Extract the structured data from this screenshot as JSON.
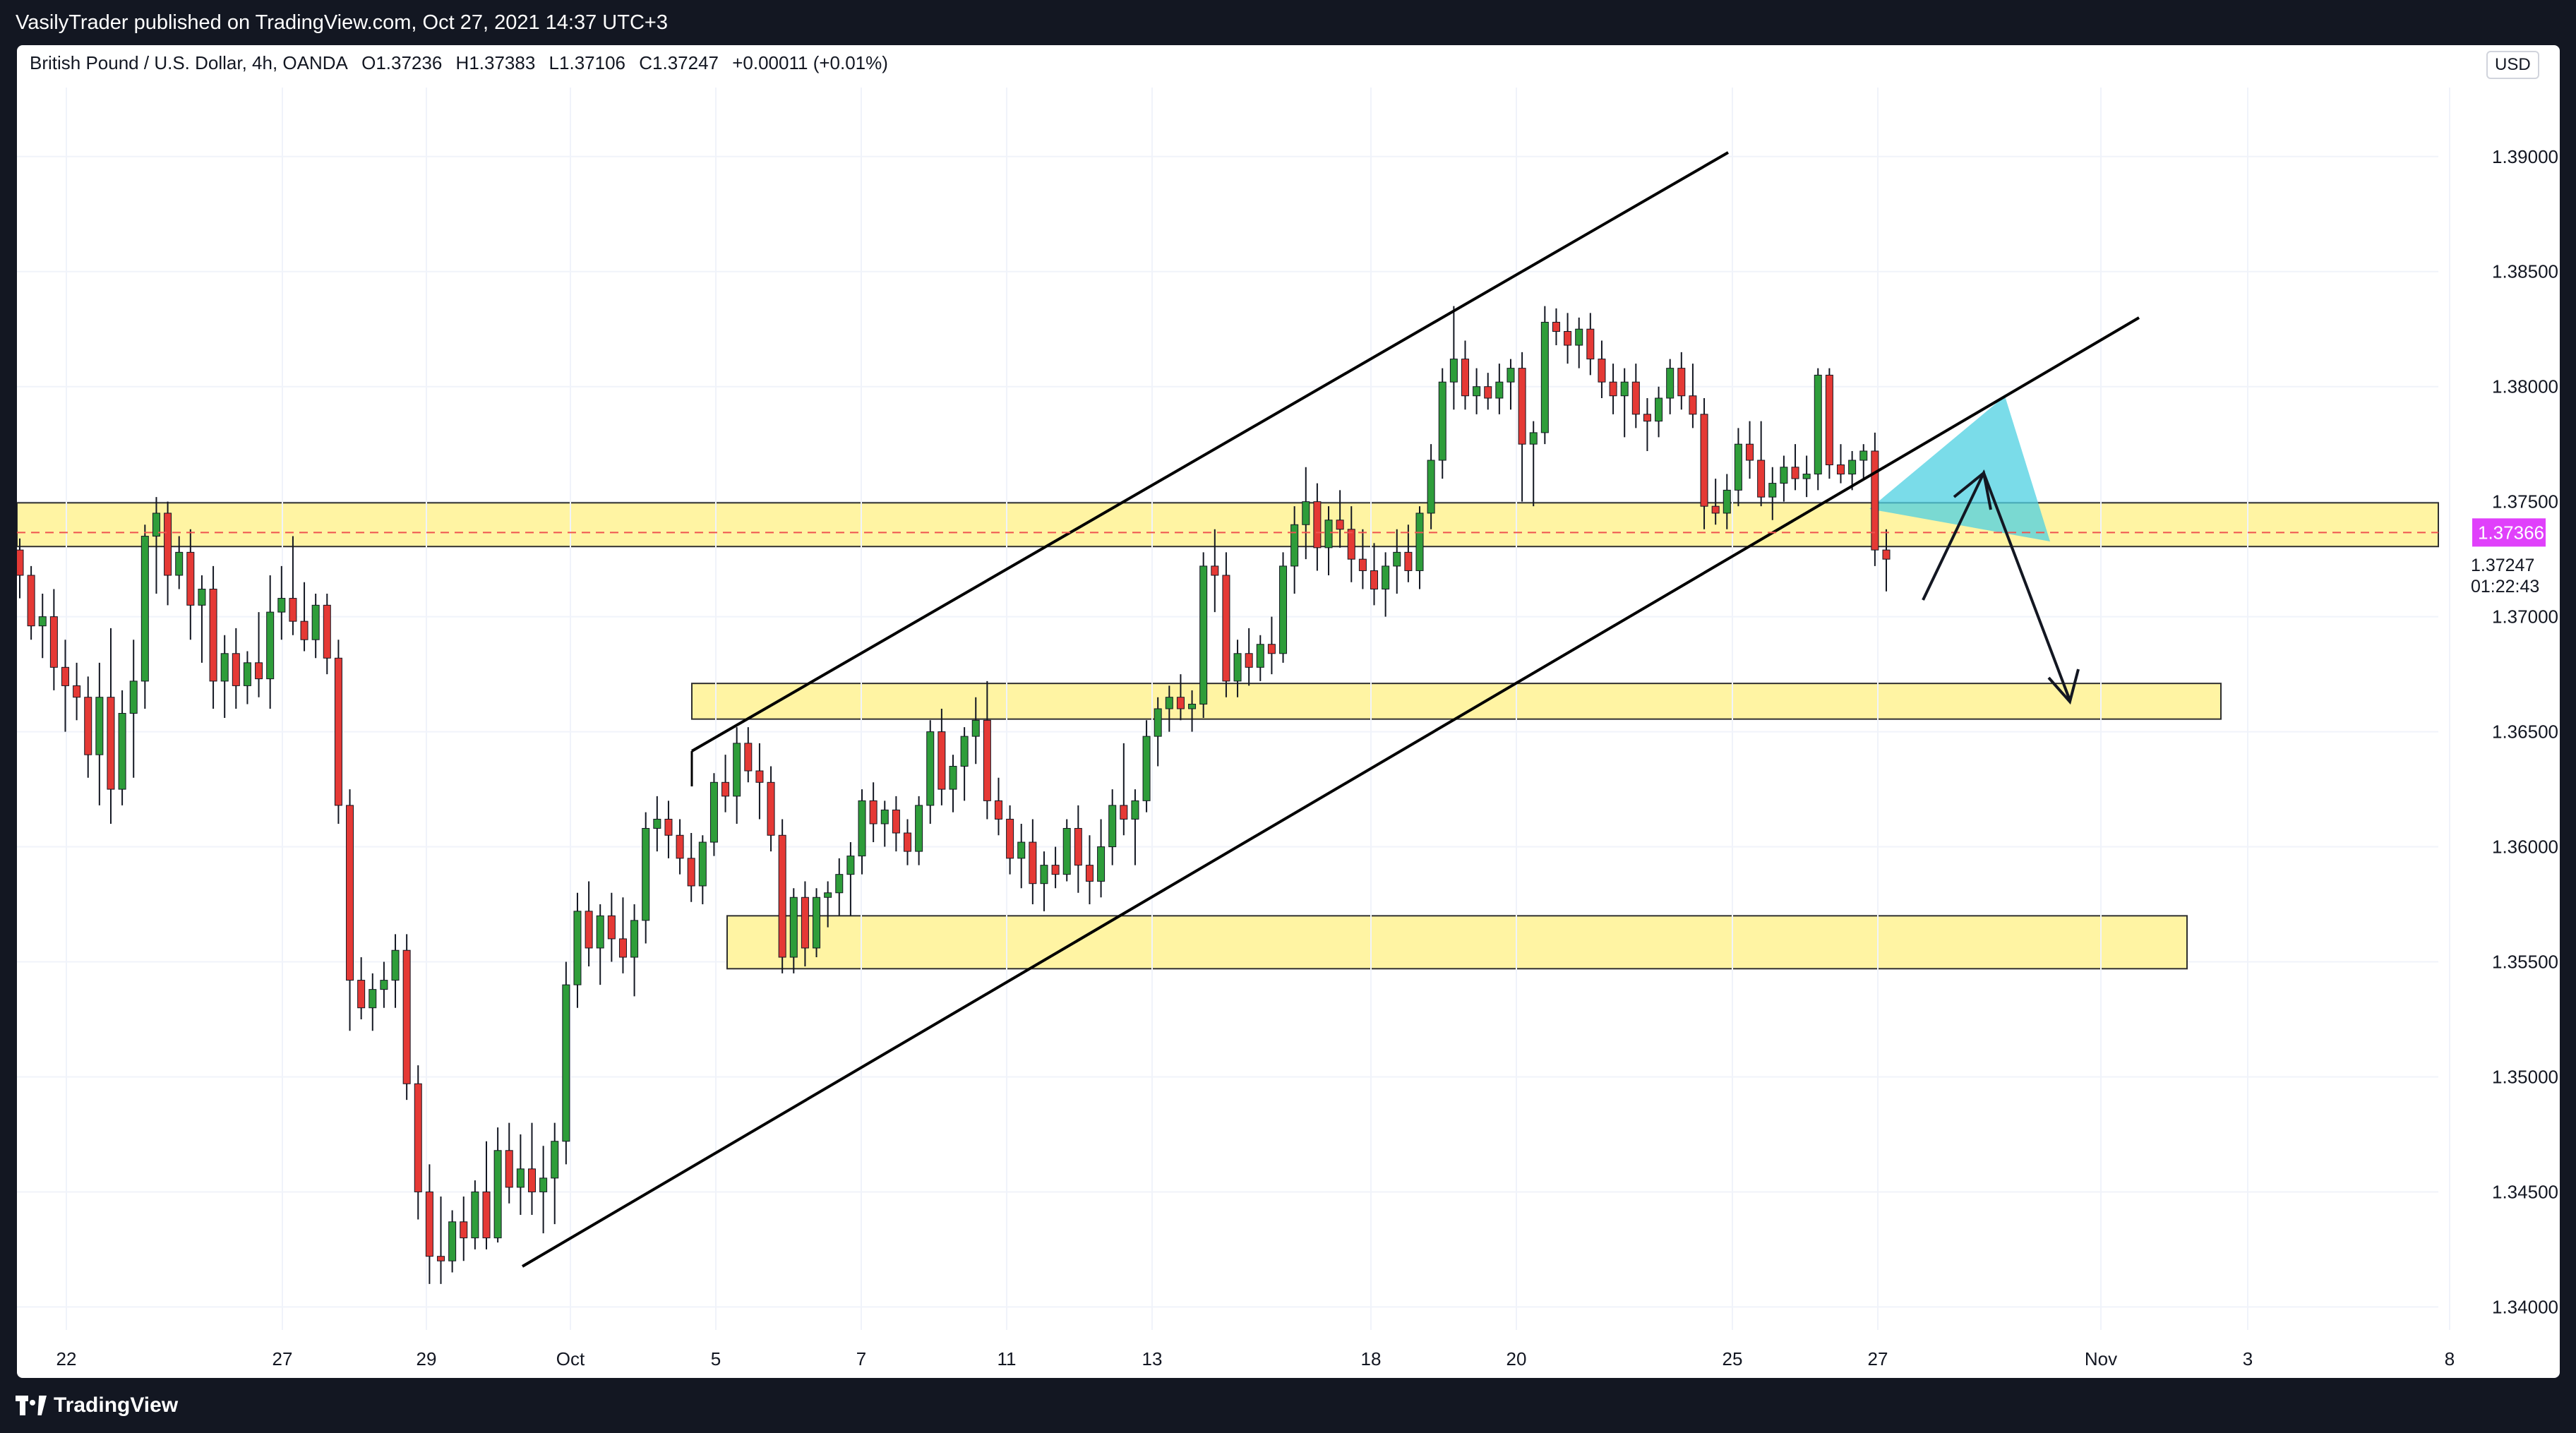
{
  "header": {
    "published_by": "VasilyTrader published on TradingView.com, Oct 27, 2021 14:37 UTC+3"
  },
  "footer": {
    "brand": "TradingView"
  },
  "chart_data": {
    "type": "candlestick",
    "symbol_info": {
      "name": "British Pound / U.S. Dollar, 4h, OANDA",
      "open": "O1.37236",
      "high": "H1.37383",
      "low": "L1.37106",
      "close": "C1.37247",
      "change": "+0.00011 (+0.01%)"
    },
    "currency": "USD",
    "y_ticks": [
      "1.39000",
      "1.38500",
      "1.38000",
      "1.37500",
      "1.37000",
      "1.36500",
      "1.36000",
      "1.35500",
      "1.35000",
      "1.34500",
      "1.34000"
    ],
    "x_ticks": [
      "22",
      "27",
      "29",
      "Oct",
      "5",
      "7",
      "11",
      "13",
      "18",
      "20",
      "25",
      "27",
      "Nov",
      "3",
      "8"
    ],
    "current_price": {
      "value": "1.37366",
      "color": "#e040fb"
    },
    "last_close": {
      "value": "1.37247",
      "countdown": "01:22:43"
    },
    "candles": [
      [
        1.3729,
        1.3734,
        1.3708,
        1.3718
      ],
      [
        1.3718,
        1.3722,
        1.369,
        1.3696
      ],
      [
        1.3696,
        1.371,
        1.3682,
        1.37
      ],
      [
        1.37,
        1.3712,
        1.3668,
        1.3678
      ],
      [
        1.3678,
        1.369,
        1.365,
        1.367
      ],
      [
        1.367,
        1.368,
        1.3655,
        1.3665
      ],
      [
        1.3665,
        1.3674,
        1.363,
        1.364
      ],
      [
        1.364,
        1.368,
        1.3618,
        1.3665
      ],
      [
        1.3665,
        1.3695,
        1.361,
        1.3625
      ],
      [
        1.3625,
        1.3668,
        1.3618,
        1.3658
      ],
      [
        1.3658,
        1.369,
        1.363,
        1.3672
      ],
      [
        1.3672,
        1.374,
        1.366,
        1.3735
      ],
      [
        1.3735,
        1.3752,
        1.371,
        1.3745
      ],
      [
        1.3745,
        1.375,
        1.3705,
        1.3718
      ],
      [
        1.3718,
        1.3735,
        1.3712,
        1.3728
      ],
      [
        1.3728,
        1.3738,
        1.369,
        1.3705
      ],
      [
        1.3705,
        1.3718,
        1.368,
        1.3712
      ],
      [
        1.3712,
        1.3722,
        1.366,
        1.3672
      ],
      [
        1.3672,
        1.3692,
        1.3656,
        1.3684
      ],
      [
        1.3684,
        1.3695,
        1.366,
        1.367
      ],
      [
        1.367,
        1.3685,
        1.3662,
        1.368
      ],
      [
        1.368,
        1.3702,
        1.3665,
        1.3673
      ],
      [
        1.3673,
        1.3718,
        1.366,
        1.3702
      ],
      [
        1.3702,
        1.3722,
        1.369,
        1.3708
      ],
      [
        1.3708,
        1.3735,
        1.3692,
        1.3698
      ],
      [
        1.3698,
        1.3715,
        1.3685,
        1.369
      ],
      [
        1.369,
        1.371,
        1.3682,
        1.3705
      ],
      [
        1.3705,
        1.371,
        1.3675,
        1.3682
      ],
      [
        1.3682,
        1.369,
        1.361,
        1.3618
      ],
      [
        1.3618,
        1.3625,
        1.352,
        1.3542
      ],
      [
        1.3542,
        1.3552,
        1.3525,
        1.353
      ],
      [
        1.353,
        1.3545,
        1.352,
        1.3538
      ],
      [
        1.3538,
        1.355,
        1.353,
        1.3542
      ],
      [
        1.3542,
        1.3562,
        1.353,
        1.3555
      ],
      [
        1.3555,
        1.3562,
        1.349,
        1.3497
      ],
      [
        1.3497,
        1.3505,
        1.3438,
        1.345
      ],
      [
        1.345,
        1.3462,
        1.341,
        1.3422
      ],
      [
        1.3422,
        1.3448,
        1.341,
        1.342
      ],
      [
        1.342,
        1.3442,
        1.3415,
        1.3437
      ],
      [
        1.3437,
        1.3448,
        1.342,
        1.343
      ],
      [
        1.343,
        1.3455,
        1.3425,
        1.345
      ],
      [
        1.345,
        1.3472,
        1.3425,
        1.343
      ],
      [
        1.343,
        1.3478,
        1.3428,
        1.3468
      ],
      [
        1.3468,
        1.348,
        1.3445,
        1.3452
      ],
      [
        1.3452,
        1.3475,
        1.344,
        1.346
      ],
      [
        1.346,
        1.348,
        1.344,
        1.345
      ],
      [
        1.345,
        1.347,
        1.3432,
        1.3456
      ],
      [
        1.3456,
        1.348,
        1.3436,
        1.3472
      ],
      [
        1.3472,
        1.355,
        1.3462,
        1.354
      ],
      [
        1.354,
        1.358,
        1.353,
        1.3572
      ],
      [
        1.3572,
        1.3585,
        1.3548,
        1.3556
      ],
      [
        1.3556,
        1.3575,
        1.354,
        1.357
      ],
      [
        1.357,
        1.358,
        1.355,
        1.356
      ],
      [
        1.356,
        1.3578,
        1.3545,
        1.3552
      ],
      [
        1.3552,
        1.3575,
        1.3535,
        1.3568
      ],
      [
        1.3568,
        1.3615,
        1.3558,
        1.3608
      ],
      [
        1.3608,
        1.3622,
        1.3598,
        1.3612
      ],
      [
        1.3612,
        1.362,
        1.3595,
        1.3605
      ],
      [
        1.3605,
        1.3612,
        1.3588,
        1.3595
      ],
      [
        1.3595,
        1.3606,
        1.3576,
        1.3583
      ],
      [
        1.3583,
        1.3605,
        1.3575,
        1.3602
      ],
      [
        1.3602,
        1.3632,
        1.3596,
        1.3628
      ],
      [
        1.3628,
        1.364,
        1.3615,
        1.3622
      ],
      [
        1.3622,
        1.3652,
        1.361,
        1.3645
      ],
      [
        1.3645,
        1.3652,
        1.3628,
        1.3633
      ],
      [
        1.3633,
        1.3645,
        1.3612,
        1.3628
      ],
      [
        1.3628,
        1.3635,
        1.3598,
        1.3605
      ],
      [
        1.3605,
        1.3612,
        1.3545,
        1.3552
      ],
      [
        1.3552,
        1.3582,
        1.3545,
        1.3578
      ],
      [
        1.3578,
        1.3585,
        1.3548,
        1.3556
      ],
      [
        1.3556,
        1.3582,
        1.3552,
        1.3578
      ],
      [
        1.3578,
        1.3585,
        1.3565,
        1.358
      ],
      [
        1.358,
        1.3595,
        1.357,
        1.3588
      ],
      [
        1.3588,
        1.3602,
        1.357,
        1.3596
      ],
      [
        1.3596,
        1.3625,
        1.3588,
        1.362
      ],
      [
        1.362,
        1.3628,
        1.3602,
        1.361
      ],
      [
        1.361,
        1.362,
        1.36,
        1.3616
      ],
      [
        1.3616,
        1.3622,
        1.3598,
        1.3606
      ],
      [
        1.3606,
        1.3612,
        1.3592,
        1.3598
      ],
      [
        1.3598,
        1.3622,
        1.3592,
        1.3618
      ],
      [
        1.3618,
        1.3655,
        1.361,
        1.365
      ],
      [
        1.365,
        1.366,
        1.3618,
        1.3625
      ],
      [
        1.3625,
        1.364,
        1.3615,
        1.3635
      ],
      [
        1.3635,
        1.3652,
        1.362,
        1.3648
      ],
      [
        1.3648,
        1.3665,
        1.3636,
        1.3655
      ],
      [
        1.3655,
        1.3672,
        1.3612,
        1.362
      ],
      [
        1.362,
        1.363,
        1.3605,
        1.3612
      ],
      [
        1.3612,
        1.3618,
        1.3588,
        1.3595
      ],
      [
        1.3595,
        1.361,
        1.3582,
        1.3602
      ],
      [
        1.3602,
        1.3612,
        1.3575,
        1.3584
      ],
      [
        1.3584,
        1.3598,
        1.3572,
        1.3592
      ],
      [
        1.3592,
        1.36,
        1.3582,
        1.3588
      ],
      [
        1.3588,
        1.3612,
        1.3585,
        1.3608
      ],
      [
        1.3608,
        1.3618,
        1.358,
        1.3592
      ],
      [
        1.3592,
        1.3605,
        1.3575,
        1.3585
      ],
      [
        1.3585,
        1.3612,
        1.3578,
        1.36
      ],
      [
        1.36,
        1.3625,
        1.3592,
        1.3618
      ],
      [
        1.3618,
        1.3645,
        1.3605,
        1.3612
      ],
      [
        1.3612,
        1.3625,
        1.3592,
        1.362
      ],
      [
        1.362,
        1.3655,
        1.3615,
        1.3648
      ],
      [
        1.3648,
        1.3665,
        1.3635,
        1.366
      ],
      [
        1.366,
        1.367,
        1.365,
        1.3665
      ],
      [
        1.3665,
        1.3675,
        1.3655,
        1.366
      ],
      [
        1.366,
        1.3668,
        1.365,
        1.3662
      ],
      [
        1.3662,
        1.3728,
        1.3656,
        1.3722
      ],
      [
        1.3722,
        1.3738,
        1.3702,
        1.3718
      ],
      [
        1.3718,
        1.3728,
        1.3665,
        1.3672
      ],
      [
        1.3672,
        1.369,
        1.3665,
        1.3684
      ],
      [
        1.3684,
        1.3695,
        1.367,
        1.3678
      ],
      [
        1.3678,
        1.3692,
        1.3672,
        1.3688
      ],
      [
        1.3688,
        1.37,
        1.3675,
        1.3684
      ],
      [
        1.3684,
        1.3728,
        1.368,
        1.3722
      ],
      [
        1.3722,
        1.3748,
        1.371,
        1.374
      ],
      [
        1.374,
        1.3765,
        1.3725,
        1.375
      ],
      [
        1.375,
        1.3758,
        1.372,
        1.373
      ],
      [
        1.373,
        1.3748,
        1.3718,
        1.3742
      ],
      [
        1.3742,
        1.3755,
        1.373,
        1.3738
      ],
      [
        1.3738,
        1.3748,
        1.3715,
        1.3725
      ],
      [
        1.3725,
        1.3738,
        1.3712,
        1.372
      ],
      [
        1.372,
        1.3732,
        1.3705,
        1.3712
      ],
      [
        1.3712,
        1.3728,
        1.37,
        1.3722
      ],
      [
        1.3722,
        1.3738,
        1.371,
        1.3728
      ],
      [
        1.3728,
        1.374,
        1.3715,
        1.372
      ],
      [
        1.372,
        1.3748,
        1.3712,
        1.3745
      ],
      [
        1.3745,
        1.3775,
        1.3738,
        1.3768
      ],
      [
        1.3768,
        1.3808,
        1.376,
        1.3802
      ],
      [
        1.3802,
        1.3835,
        1.379,
        1.3812
      ],
      [
        1.3812,
        1.382,
        1.379,
        1.3796
      ],
      [
        1.3796,
        1.3808,
        1.3788,
        1.38
      ],
      [
        1.38,
        1.3806,
        1.379,
        1.3795
      ],
      [
        1.3795,
        1.381,
        1.3788,
        1.3802
      ],
      [
        1.3802,
        1.3812,
        1.379,
        1.3808
      ],
      [
        1.3808,
        1.3815,
        1.375,
        1.3775
      ],
      [
        1.3775,
        1.3785,
        1.3748,
        1.378
      ],
      [
        1.378,
        1.3835,
        1.3775,
        1.3828
      ],
      [
        1.3828,
        1.3834,
        1.3818,
        1.3824
      ],
      [
        1.3824,
        1.3832,
        1.381,
        1.3818
      ],
      [
        1.3818,
        1.383,
        1.3808,
        1.3825
      ],
      [
        1.3825,
        1.3832,
        1.3805,
        1.3812
      ],
      [
        1.3812,
        1.382,
        1.3795,
        1.3802
      ],
      [
        1.3802,
        1.381,
        1.3788,
        1.3796
      ],
      [
        1.3796,
        1.3808,
        1.3778,
        1.3802
      ],
      [
        1.3802,
        1.381,
        1.3782,
        1.3788
      ],
      [
        1.3788,
        1.3795,
        1.3772,
        1.3785
      ],
      [
        1.3785,
        1.38,
        1.3778,
        1.3795
      ],
      [
        1.3795,
        1.3812,
        1.3788,
        1.3808
      ],
      [
        1.3808,
        1.3815,
        1.379,
        1.3796
      ],
      [
        1.3796,
        1.381,
        1.3782,
        1.3788
      ],
      [
        1.3788,
        1.3795,
        1.3738,
        1.3748
      ],
      [
        1.3748,
        1.376,
        1.374,
        1.3745
      ],
      [
        1.3745,
        1.3762,
        1.3738,
        1.3755
      ],
      [
        1.3755,
        1.3782,
        1.3748,
        1.3775
      ],
      [
        1.3775,
        1.3785,
        1.376,
        1.3768
      ],
      [
        1.3768,
        1.3785,
        1.3748,
        1.3752
      ],
      [
        1.3752,
        1.3765,
        1.3742,
        1.3758
      ],
      [
        1.3758,
        1.377,
        1.375,
        1.3765
      ],
      [
        1.3765,
        1.3775,
        1.3755,
        1.376
      ],
      [
        1.376,
        1.377,
        1.3752,
        1.3762
      ],
      [
        1.3762,
        1.3808,
        1.3755,
        1.3805
      ],
      [
        1.3805,
        1.3808,
        1.376,
        1.3766
      ],
      [
        1.3766,
        1.3775,
        1.3758,
        1.3762
      ],
      [
        1.3762,
        1.3772,
        1.3755,
        1.3768
      ],
      [
        1.3768,
        1.3775,
        1.376,
        1.3772
      ],
      [
        1.3772,
        1.378,
        1.3722,
        1.3729
      ],
      [
        1.3729,
        1.3738,
        1.3711,
        1.3725
      ]
    ],
    "zones": [
      {
        "from": 1.37305,
        "to": 1.37495,
        "start": "left",
        "end": "right",
        "label": ""
      },
      {
        "from": 1.36555,
        "to": 1.3671,
        "start": 1.3681,
        "end": 1.383,
        "label": ""
      },
      {
        "from": 1.3547,
        "to": 1.357,
        "start": 1.369,
        "end": 1.3825,
        "label": ""
      }
    ],
    "colors": {
      "up": "#26a69a",
      "down": "#ef5350",
      "bull_candle": "#2e9d3a",
      "bear_candle": "#e53935",
      "zone_fill": "#fff39a",
      "zone_border": "#1a1a1a",
      "triangle": "#4dd0e1",
      "grid": "#f0f3fa"
    },
    "ylim": [
      1.339,
      1.393
    ],
    "grid": true
  }
}
